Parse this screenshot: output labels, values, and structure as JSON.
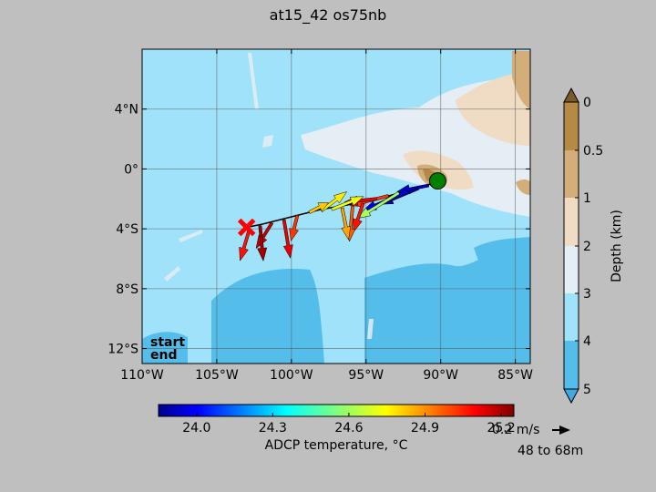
{
  "chart_data": {
    "type": "scatter",
    "title": "at15_42 os75nb",
    "map": {
      "lon_range": [
        -110,
        -84
      ],
      "lat_range": [
        -13,
        8
      ],
      "x_ticks": [
        -110,
        -105,
        -100,
        -95,
        -90,
        -85
      ],
      "x_tick_labels": [
        "110°W",
        "105°W",
        "100°W",
        "95°W",
        "90°W",
        "85°W"
      ],
      "y_ticks": [
        4,
        0,
        -4,
        -8,
        -12
      ],
      "y_tick_labels": [
        "4°N",
        "0°",
        "4°S",
        "8°S",
        "12°S"
      ],
      "grid": true
    },
    "depth_colorbar": {
      "label": "Depth (km)",
      "ticks": [
        0,
        0.5,
        1,
        2,
        3,
        4,
        5
      ],
      "tick_labels": [
        "0",
        "0.5",
        "1",
        "2",
        "3",
        "4",
        "5"
      ],
      "colors": [
        "#b58a45",
        "#d3ae7a",
        "#f0dcc4",
        "#e4eef4",
        "#9fe2fa",
        "#55bdea"
      ]
    },
    "temperature_colorbar": {
      "label": "ADCP temperature, °C",
      "range": [
        23.85,
        25.25
      ],
      "ticks": [
        24.0,
        24.3,
        24.6,
        24.9,
        25.2
      ],
      "tick_labels": [
        "24.0",
        "24.3",
        "24.6",
        "24.9",
        "25.2"
      ]
    },
    "track": [
      {
        "lon": -90.0,
        "lat": -0.8
      },
      {
        "lon": -92.0,
        "lat": -1.4
      },
      {
        "lon": -95.0,
        "lat": -2.2
      },
      {
        "lon": -98.0,
        "lat": -2.7
      },
      {
        "lon": -100.0,
        "lat": -3.2
      },
      {
        "lon": -102.0,
        "lat": -3.7
      },
      {
        "lon": -103.0,
        "lat": -3.9
      }
    ],
    "start_point": {
      "lon": -90.2,
      "lat": -0.8
    },
    "end_point": {
      "lon": -103.0,
      "lat": -3.9
    },
    "vectors": [
      {
        "lon": -90.8,
        "lat": -1.1,
        "u": -0.1,
        "v": -0.02,
        "temp": 23.95
      },
      {
        "lon": -91.5,
        "lat": -1.3,
        "u": -0.12,
        "v": -0.05,
        "temp": 23.9
      },
      {
        "lon": -92.2,
        "lat": -1.5,
        "u": -0.14,
        "v": -0.06,
        "temp": 24.0
      },
      {
        "lon": -92.8,
        "lat": -1.6,
        "u": -0.13,
        "v": -0.08,
        "temp": 24.6
      },
      {
        "lon": -93.5,
        "lat": -1.8,
        "u": -0.12,
        "v": -0.03,
        "temp": 25.0
      },
      {
        "lon": -94.3,
        "lat": -2.0,
        "u": -0.1,
        "v": -0.01,
        "temp": 25.1
      },
      {
        "lon": -95.2,
        "lat": -2.3,
        "u": -0.03,
        "v": -0.09,
        "temp": 25.05
      },
      {
        "lon": -95.9,
        "lat": -2.5,
        "u": -0.01,
        "v": -0.11,
        "temp": 24.95
      },
      {
        "lon": -96.6,
        "lat": -2.6,
        "u": 0.02,
        "v": -0.1,
        "temp": 24.85
      },
      {
        "lon": -97.3,
        "lat": -2.7,
        "u": 0.1,
        "v": 0.04,
        "temp": 24.7
      },
      {
        "lon": -98.0,
        "lat": -2.8,
        "u": 0.08,
        "v": 0.06,
        "temp": 24.75
      },
      {
        "lon": -98.8,
        "lat": -2.9,
        "u": 0.06,
        "v": 0.03,
        "temp": 24.8
      },
      {
        "lon": -99.6,
        "lat": -3.1,
        "u": -0.02,
        "v": -0.08,
        "temp": 25.0
      },
      {
        "lon": -100.5,
        "lat": -3.4,
        "u": 0.02,
        "v": -0.12,
        "temp": 25.1
      },
      {
        "lon": -101.3,
        "lat": -3.6,
        "u": -0.05,
        "v": -0.08,
        "temp": 25.15
      },
      {
        "lon": -102.1,
        "lat": -3.8,
        "u": 0.01,
        "v": -0.11,
        "temp": 25.2
      },
      {
        "lon": -102.8,
        "lat": -4.0,
        "u": -0.03,
        "v": -0.1,
        "temp": 25.05
      }
    ],
    "legend": {
      "start": "start",
      "end": "end",
      "start_color": "#008000",
      "end_color": "#ff0000"
    },
    "scale_arrow": {
      "label": "0.2 m/s",
      "magnitude": 0.2
    },
    "depth_range_label": "48 to 68m"
  }
}
